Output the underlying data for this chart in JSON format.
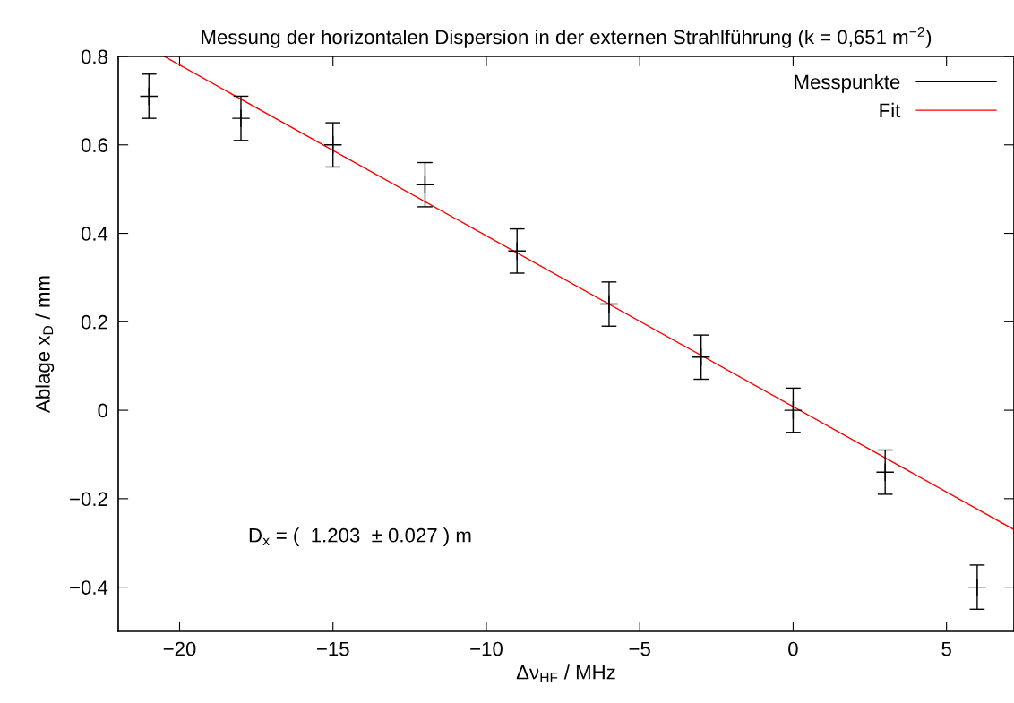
{
  "chart_data": {
    "type": "scatter",
    "title": "Messung der horizontalen Dispersion in der externen Strahlführung (k = 0,651 m$^{−2}$)",
    "xlabel": "Δν$_{HF}$ / MHz",
    "ylabel": "Ablage x$_{D}$ / mm",
    "xlim": [
      -22,
      7.2
    ],
    "xticks": [
      -20,
      -15,
      -10,
      -5,
      0,
      5
    ],
    "ylim": [
      -0.5,
      0.8
    ],
    "yticks": [
      -0.4,
      -0.2,
      0,
      0.2,
      0.4,
      0.6,
      0.8
    ],
    "grid": false,
    "legend": "top right",
    "annotations": [
      "D$_{x}$ = (  1.203  ± 0.027 ) m"
    ],
    "series": [
      {
        "name": "Messpunkte",
        "marker": "cross",
        "color": "#000000",
        "x": [
          -21,
          -18,
          -15,
          -12,
          -9,
          -6,
          -3,
          0,
          3,
          6
        ],
        "values": [
          0.71,
          0.66,
          0.6,
          0.51,
          0.36,
          0.24,
          0.12,
          0.0,
          -0.14,
          -0.4
        ],
        "errors": [
          0.05,
          0.05,
          0.05,
          0.05,
          0.05,
          0.05,
          0.05,
          0.05,
          0.05,
          0.05
        ]
      },
      {
        "name": "Fit",
        "type": "line",
        "color": "#ff0000",
        "x": [
          -20.5,
          7.2
        ],
        "values": [
          0.8,
          -0.27
        ]
      }
    ]
  }
}
